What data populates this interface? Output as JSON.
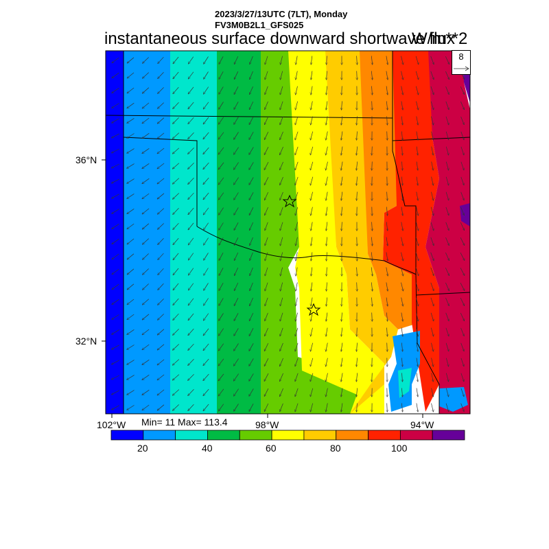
{
  "header": {
    "date_line": "2023/3/27/13UTC (7LT), Monday",
    "model_line": "FV3M0B2L1_GFS025",
    "variable_title": "instantaneous surface downward shortwave flux",
    "units": "W/m**2"
  },
  "reference_vector": {
    "value": "8"
  },
  "axes": {
    "lat_labels": [
      "36°N",
      "32°N"
    ],
    "lon_labels": [
      "102°W",
      "98°W",
      "94°W"
    ]
  },
  "stats": {
    "text": "Min= 11 Max= 113.4"
  },
  "colorbar": {
    "colors": [
      "#0000ff",
      "#0099ff",
      "#00e6cc",
      "#00bb44",
      "#66cc00",
      "#ffff00",
      "#ffcc00",
      "#ff8800",
      "#ff2200",
      "#cc0044",
      "#660099"
    ],
    "tick_labels": [
      "20",
      "40",
      "60",
      "80",
      "100"
    ]
  },
  "map": {
    "cities": [
      "star-1",
      "star-2"
    ]
  }
}
